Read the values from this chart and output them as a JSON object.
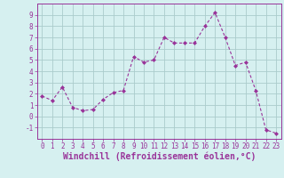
{
  "x": [
    0,
    1,
    2,
    3,
    4,
    5,
    6,
    7,
    8,
    9,
    10,
    11,
    12,
    13,
    14,
    15,
    16,
    17,
    18,
    19,
    20,
    21,
    22,
    23
  ],
  "y": [
    1.8,
    1.4,
    2.6,
    0.8,
    0.5,
    0.6,
    1.5,
    2.1,
    2.3,
    5.3,
    4.8,
    5.0,
    7.0,
    6.5,
    6.5,
    6.5,
    8.0,
    9.2,
    7.0,
    4.5,
    4.8,
    2.3,
    -1.2,
    -1.5
  ],
  "line_color": "#993399",
  "marker": "D",
  "marker_size": 2,
  "bg_color": "#d6f0f0",
  "grid_color": "#aacccc",
  "xlabel": "Windchill (Refroidissement éolien,°C)",
  "xlabel_color": "#993399",
  "xlim": [
    -0.5,
    23.5
  ],
  "ylim": [
    -2,
    10
  ],
  "yticks": [
    -1,
    0,
    1,
    2,
    3,
    4,
    5,
    6,
    7,
    8,
    9
  ],
  "xticks": [
    0,
    1,
    2,
    3,
    4,
    5,
    6,
    7,
    8,
    9,
    10,
    11,
    12,
    13,
    14,
    15,
    16,
    17,
    18,
    19,
    20,
    21,
    22,
    23
  ],
  "tick_color": "#993399",
  "tick_label_fontsize": 5.5,
  "xlabel_fontsize": 7.0
}
